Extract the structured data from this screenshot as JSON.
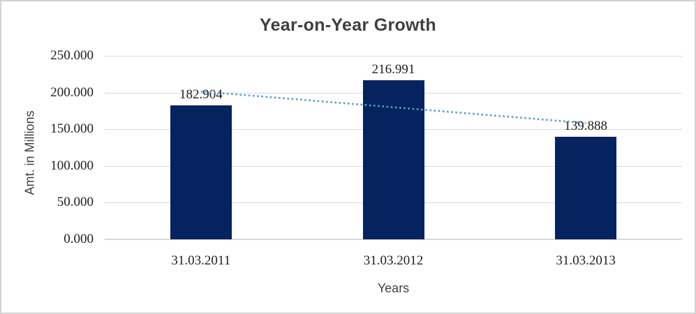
{
  "chart_data": {
    "type": "bar",
    "title": "Year-on-Year Growth",
    "xlabel": "Years",
    "ylabel": "Amt. in Millions",
    "categories": [
      "31.03.2011",
      "31.03.2012",
      "31.03.2013"
    ],
    "values": [
      182.904,
      216.991,
      139.888
    ],
    "data_labels": [
      "182.904",
      "216.991",
      "139.888"
    ],
    "ylim": [
      0,
      250
    ],
    "ytick_step": 50,
    "ytick_labels": [
      "0.000",
      "50.000",
      "100.000",
      "150.000",
      "200.000",
      "250.000"
    ],
    "grid": true,
    "legend": false,
    "trendline": {
      "type": "linear",
      "style": "dotted"
    },
    "colors": {
      "bar": "#05235F",
      "trendline": "#5B9BD5",
      "gridline": "#D9D9D9",
      "title": "#3F3F3F",
      "axis_title": "#404040",
      "tick_label": "#1F1F1F",
      "background": "#FFFFFF",
      "border": "#D2D2D2"
    }
  }
}
